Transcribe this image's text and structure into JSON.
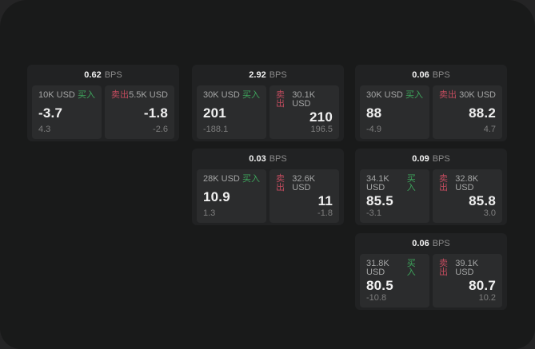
{
  "labels": {
    "bps_unit": "BPS",
    "buy": "买入",
    "sell": "卖出"
  },
  "colors": {
    "buy_accent": "#3EA55C",
    "sell_accent": "#C24B5E",
    "screen_bg": "#191A1A",
    "card_bg": "#212223",
    "pane_bg": "#2B2C2D"
  },
  "cards": [
    {
      "row": 0,
      "col": 0,
      "bps": "0.62",
      "buy": {
        "amount": "10K USD",
        "price": "-3.7",
        "sub": "4.3"
      },
      "sell": {
        "amount": "5.5K USD",
        "price": "-1.8",
        "sub": "-2.6"
      }
    },
    {
      "row": 0,
      "col": 1,
      "bps": "2.92",
      "buy": {
        "amount": "30K USD",
        "price": "201",
        "sub": "-188.1"
      },
      "sell": {
        "amount": "30.1K USD",
        "price": "210",
        "sub": "196.5"
      }
    },
    {
      "row": 0,
      "col": 2,
      "bps": "0.06",
      "buy": {
        "amount": "30K USD",
        "price": "88",
        "sub": "-4.9"
      },
      "sell": {
        "amount": "30K USD",
        "price": "88.2",
        "sub": "4.7"
      }
    },
    {
      "row": 1,
      "col": 1,
      "bps": "0.03",
      "buy": {
        "amount": "28K USD",
        "price": "10.9",
        "sub": "1.3"
      },
      "sell": {
        "amount": "32.6K USD",
        "price": "11",
        "sub": "-1.8"
      }
    },
    {
      "row": 1,
      "col": 2,
      "bps": "0.09",
      "buy": {
        "amount": "34.1K USD",
        "price": "85.5",
        "sub": "-3.1"
      },
      "sell": {
        "amount": "32.8K USD",
        "price": "85.8",
        "sub": "3.0"
      }
    },
    {
      "row": 2,
      "col": 2,
      "bps": "0.06",
      "buy": {
        "amount": "31.8K USD",
        "price": "80.5",
        "sub": "-10.8"
      },
      "sell": {
        "amount": "39.1K USD",
        "price": "80.7",
        "sub": "10.2"
      }
    }
  ]
}
